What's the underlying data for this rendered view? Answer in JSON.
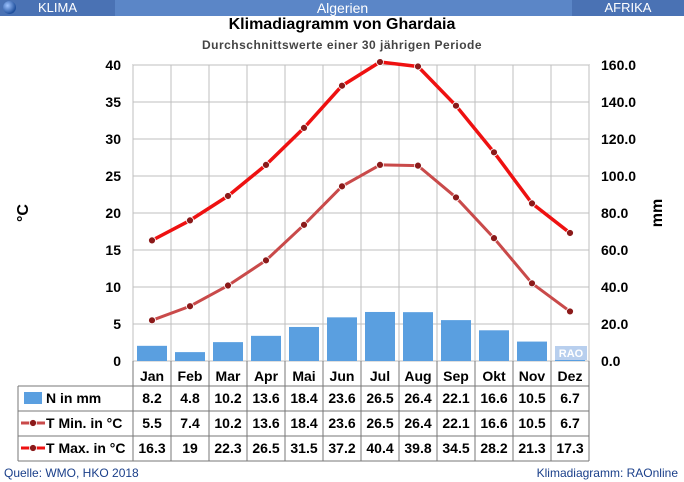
{
  "header": {
    "left": "KLIMA",
    "center": "Algerien",
    "right": "AFRIKA"
  },
  "title": "Klimadiagramm von Ghardaia",
  "subtitle": "Durchschnittswerte einer 30 jährigen Periode",
  "footer": {
    "source": "Quelle: WMO, HKO 2018",
    "credit": "Klimadiagramm: RAOnline"
  },
  "watermark": "RAO",
  "colors": {
    "bar": "#5a9fe0",
    "tmin": "#c94a4a",
    "tmax": "#ee1111",
    "marker": "#8b1a1a"
  },
  "chart_data": {
    "type": "bar+line",
    "categories": [
      "Jan",
      "Feb",
      "Mar",
      "Apr",
      "Mai",
      "Jun",
      "Jul",
      "Aug",
      "Sep",
      "Okt",
      "Nov",
      "Dez"
    ],
    "y_left": {
      "label": "°C",
      "min": 0,
      "max": 40,
      "ticks": [
        0,
        5,
        10,
        15,
        20,
        25,
        30,
        35,
        40
      ]
    },
    "y_right": {
      "label": "mm",
      "min": 0,
      "max": 160,
      "ticks": [
        "0.0",
        "20.0",
        "40.0",
        "60.0",
        "80.0",
        "100.0",
        "120.0",
        "140.0",
        "160.0"
      ]
    },
    "grid": true,
    "series": [
      {
        "name": "N in mm",
        "kind": "bar",
        "axis": "right",
        "values": [
          8.2,
          4.8,
          10.2,
          13.6,
          18.4,
          23.6,
          26.5,
          26.4,
          22.1,
          16.6,
          10.5,
          6.7
        ],
        "labels": [
          "8.2",
          "4.8",
          "10.2",
          "13.6",
          "18.4",
          "23.6",
          "26.5",
          "26.4",
          "22.1",
          "16.6",
          "10.5",
          "6.7"
        ]
      },
      {
        "name": "T Min. in °C",
        "kind": "line",
        "axis": "left",
        "values": [
          5.5,
          7.4,
          10.2,
          13.6,
          18.4,
          23.6,
          26.5,
          26.4,
          22.1,
          16.6,
          10.5,
          6.7
        ],
        "labels": [
          "5.5",
          "7.4",
          "10.2",
          "13.6",
          "18.4",
          "23.6",
          "26.5",
          "26.4",
          "22.1",
          "16.6",
          "10.5",
          "6.7"
        ]
      },
      {
        "name": "T Max. in °C",
        "kind": "line",
        "axis": "left",
        "values": [
          16.3,
          19,
          22.3,
          26.5,
          31.5,
          37.2,
          40.4,
          39.8,
          34.5,
          28.2,
          21.3,
          17.3
        ],
        "labels": [
          "16.3",
          "19",
          "22.3",
          "26.5",
          "31.5",
          "37.2",
          "40.4",
          "39.8",
          "34.5",
          "28.2",
          "21.3",
          "17.3"
        ]
      }
    ]
  }
}
